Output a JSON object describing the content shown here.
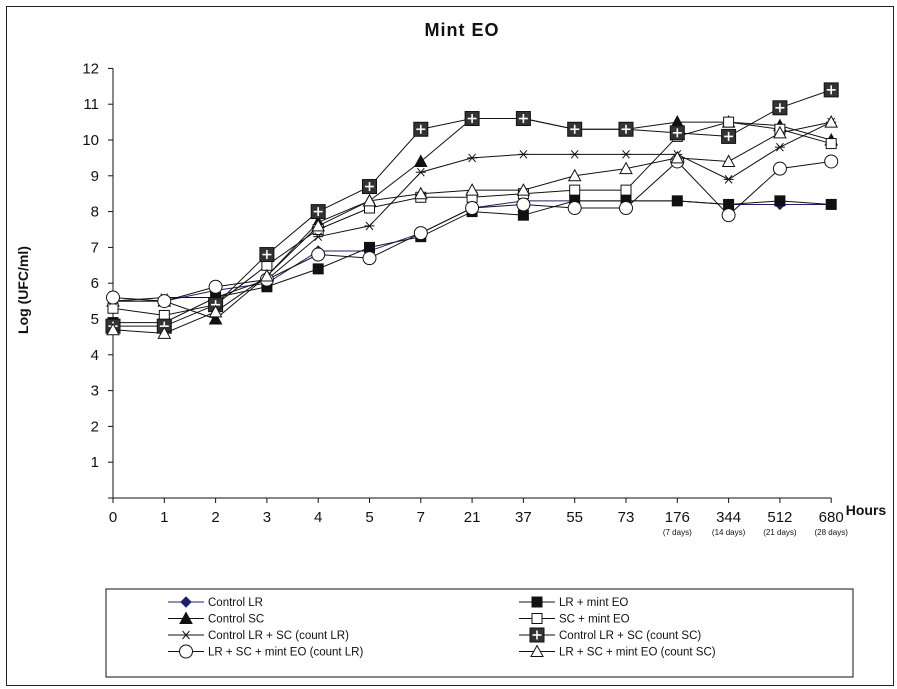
{
  "chart_data": {
    "type": "line",
    "title": "Mint EO",
    "xlabel": "Hours",
    "ylabel": "Log (UFC/ml)",
    "ylim": [
      0,
      12
    ],
    "yticks": [
      "1",
      "2",
      "3",
      "4",
      "5",
      "6",
      "7",
      "8",
      "9",
      "10",
      "11",
      "12"
    ],
    "categories": [
      "0",
      "1",
      "2",
      "3",
      "4",
      "5",
      "7",
      "21",
      "37",
      "55",
      "73",
      "176",
      "344",
      "512",
      "680"
    ],
    "category_sublabels": [
      "",
      "",
      "",
      "",
      "",
      "",
      "",
      "",
      "",
      "",
      "",
      "(7 days)",
      "(14 days)",
      "(21 days)",
      "(28 days)"
    ],
    "grid": false,
    "legend_position": "bottom",
    "series": [
      {
        "name": "Control LR",
        "marker": "diamond-filled",
        "color": "#1f1f6e",
        "values": [
          5.5,
          5.5,
          5.8,
          6.0,
          6.9,
          6.9,
          7.4,
          8.1,
          8.3,
          8.3,
          8.3,
          8.3,
          8.2,
          8.2,
          8.2
        ]
      },
      {
        "name": "LR + mint EO",
        "marker": "square-filled",
        "color": "#111111",
        "values": [
          4.9,
          4.9,
          5.6,
          5.9,
          6.4,
          7.0,
          7.3,
          8.0,
          7.9,
          8.3,
          8.3,
          8.3,
          8.2,
          8.3,
          8.2
        ]
      },
      {
        "name": "Control SC",
        "marker": "triangle-filled",
        "color": "#111111",
        "values": [
          5.5,
          5.5,
          5.0,
          6.2,
          7.7,
          8.3,
          9.4,
          10.6,
          10.6,
          10.3,
          10.3,
          10.5,
          10.5,
          10.4,
          10.0
        ]
      },
      {
        "name": "SC + mint EO",
        "marker": "square-open",
        "color": "#111111",
        "values": [
          5.3,
          5.1,
          5.4,
          6.5,
          7.5,
          8.1,
          8.4,
          8.4,
          8.5,
          8.6,
          8.6,
          10.1,
          10.5,
          10.3,
          9.9
        ]
      },
      {
        "name": "Control LR + SC (count LR)",
        "marker": "asterisk",
        "color": "#111111",
        "values": [
          5.5,
          5.6,
          5.6,
          6.1,
          7.3,
          7.6,
          9.1,
          9.5,
          9.6,
          9.6,
          9.6,
          9.6,
          8.9,
          9.8,
          10.5
        ]
      },
      {
        "name": "Control LR + SC (count SC)",
        "marker": "square-plus",
        "color": "#111111",
        "values": [
          4.8,
          4.8,
          5.4,
          6.8,
          8.0,
          8.7,
          10.3,
          10.6,
          10.6,
          10.3,
          10.3,
          10.2,
          10.1,
          10.9,
          11.4
        ]
      },
      {
        "name": "LR + SC + mint EO (count LR)",
        "marker": "circle-open",
        "color": "#111111",
        "values": [
          5.6,
          5.5,
          5.9,
          6.1,
          6.8,
          6.7,
          7.4,
          8.1,
          8.2,
          8.1,
          8.1,
          9.4,
          7.9,
          9.2,
          9.4
        ]
      },
      {
        "name": "LR + SC + mint EO (count SC)",
        "marker": "triangle-open",
        "color": "#111111",
        "values": [
          4.7,
          4.6,
          5.2,
          6.2,
          7.6,
          8.3,
          8.5,
          8.6,
          8.6,
          9.0,
          9.2,
          9.5,
          9.4,
          10.2,
          10.5
        ]
      }
    ]
  }
}
